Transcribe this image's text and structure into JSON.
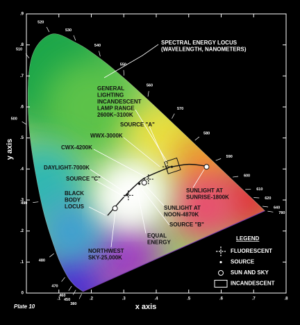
{
  "chart_data": {
    "type": "chromaticity",
    "xlabel": "x axis",
    "ylabel": "y axis",
    "footer": "Plate 10",
    "xlim": [
      0,
      0.8
    ],
    "ylim": [
      0,
      0.9
    ],
    "xticks": [
      {
        "value": 0.1,
        "label": ".1"
      },
      {
        "value": 0.2,
        "label": ".2"
      },
      {
        "value": 0.3,
        "label": ".3"
      },
      {
        "value": 0.4,
        "label": ".4"
      },
      {
        "value": 0.5,
        "label": ".5"
      },
      {
        "value": 0.6,
        "label": ".6"
      },
      {
        "value": 0.7,
        "label": ".7"
      },
      {
        "value": 0.8,
        "label": ".8"
      }
    ],
    "yticks": [
      0,
      {
        "value": 0.1,
        "label": ".1"
      },
      {
        "value": 0.2,
        "label": ".2"
      },
      {
        "value": 0.3,
        "label": ".3"
      },
      {
        "value": 0.4,
        "label": ".4"
      },
      {
        "value": 0.5,
        "label": ".5"
      },
      {
        "value": 0.6,
        "label": ".6"
      },
      {
        "value": 0.7,
        "label": ".7"
      },
      {
        "value": 0.8,
        "label": ".8"
      },
      {
        "value": 0.9,
        "label": ".9"
      }
    ],
    "locus": {
      "labels": [
        380,
        450,
        460,
        470,
        480,
        490,
        500,
        510,
        520,
        530,
        540,
        550,
        560,
        570,
        580,
        590,
        600,
        610,
        620,
        640,
        780
      ],
      "x": [
        0.1741,
        0.1566,
        0.144,
        0.1241,
        0.0913,
        0.0454,
        0.0082,
        0.0139,
        0.0743,
        0.1547,
        0.2296,
        0.3016,
        0.3731,
        0.4441,
        0.5125,
        0.5752,
        0.627,
        0.6658,
        0.6915,
        0.719,
        0.7347
      ],
      "y": [
        0.005,
        0.0177,
        0.0297,
        0.0578,
        0.1327,
        0.295,
        0.5384,
        0.7502,
        0.8338,
        0.8059,
        0.7543,
        0.6923,
        0.6245,
        0.5547,
        0.4866,
        0.4242,
        0.3725,
        0.334,
        0.3083,
        0.2809,
        0.2653
      ]
    },
    "blackbody": {
      "x": [
        0.25,
        0.306,
        0.35,
        0.372,
        0.437,
        0.448,
        0.5,
        0.55
      ],
      "y": [
        0.25,
        0.316,
        0.36,
        0.375,
        0.404,
        0.407,
        0.415,
        0.41
      ]
    },
    "series": [
      {
        "name": "FLUORESCENT",
        "marker": "cross",
        "x": [
          0.314,
          0.376,
          0.434
        ],
        "y": [
          0.315,
          0.367,
          0.407
        ]
      },
      {
        "name": "SOURCE",
        "marker": "dot",
        "x": [
          0.448,
          0.348,
          0.31
        ],
        "y": [
          0.407,
          0.352,
          0.316
        ]
      },
      {
        "name": "SUN AND SKY",
        "marker": "circle",
        "x": [
          0.273,
          0.363,
          0.555
        ],
        "y": [
          0.273,
          0.356,
          0.407
        ]
      },
      {
        "name": "INCANDESCENT",
        "marker": "box",
        "x": [
          0.43,
          0.47
        ],
        "y": [
          0.39,
          0.43
        ]
      }
    ],
    "legend_title": "LEGEND",
    "annotations": [
      [
        "SPECTRAL ENERGY LOCUS",
        "(WAVELENGTH, NANOMETERS)"
      ],
      [
        "GENERAL",
        "LIGHTING",
        "INCANDESCENT",
        "LAMP RANGE",
        "2600K–3100K"
      ],
      [
        "SOURCE \"A\""
      ],
      [
        "WWX-3000K"
      ],
      [
        "CWX-4200K"
      ],
      [
        "DAYLIGHT-7000K"
      ],
      [
        "SOURCE \"C\""
      ],
      [
        "BLACK",
        "BODY",
        "LOCUS"
      ],
      [
        "SUNLIGHT AT",
        "SUNRISE-1800K"
      ],
      [
        "SUNLIGHT AT",
        "NOON-4870K"
      ],
      [
        "SOURCE \"B\""
      ],
      [
        "EQUAL",
        "ENERGY"
      ],
      [
        "NORTHWEST",
        "SKY-25,000K"
      ]
    ]
  }
}
